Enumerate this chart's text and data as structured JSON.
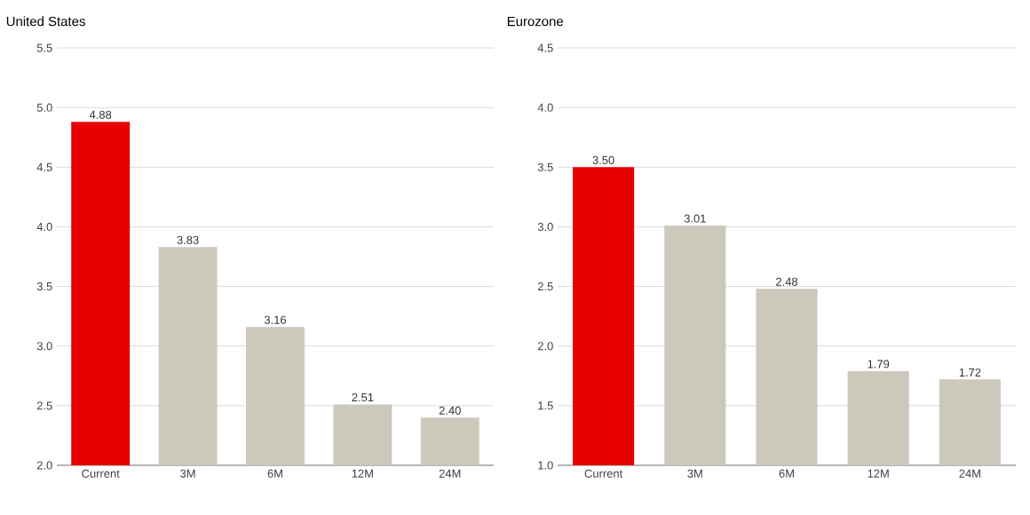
{
  "chart_data": [
    {
      "type": "bar",
      "title": "United States",
      "categories": [
        "Current",
        "3M",
        "6M",
        "12M",
        "24M"
      ],
      "values": [
        4.88,
        3.83,
        3.16,
        2.51,
        2.4
      ],
      "value_labels": [
        "4.88",
        "3.83",
        "3.16",
        "2.51",
        "2.40"
      ],
      "colors": [
        "#e60000",
        "#ccc9bc",
        "#ccc9bc",
        "#ccc9bc",
        "#ccc9bc"
      ],
      "ylim": [
        2.0,
        5.5
      ],
      "yticks": [
        {
          "value": 2,
          "label": "2.0"
        },
        {
          "value": 2.5,
          "label": "2.5"
        },
        {
          "value": 3,
          "label": "3.0"
        },
        {
          "value": 3.5,
          "label": "3.5"
        },
        {
          "value": 4,
          "label": "4.0"
        },
        {
          "value": 4.5,
          "label": "4.5"
        },
        {
          "value": 5,
          "label": "5.0"
        },
        {
          "value": 5.5,
          "label": "5.5"
        }
      ],
      "grid": "y"
    },
    {
      "type": "bar",
      "title": "Eurozone",
      "categories": [
        "Current",
        "3M",
        "6M",
        "12M",
        "24M"
      ],
      "values": [
        3.5,
        3.01,
        2.48,
        1.79,
        1.72
      ],
      "value_labels": [
        "3.50",
        "3.01",
        "2.48",
        "1.79",
        "1.72"
      ],
      "colors": [
        "#e60000",
        "#ccc9bc",
        "#ccc9bc",
        "#ccc9bc",
        "#ccc9bc"
      ],
      "ylim": [
        1.0,
        4.5
      ],
      "yticks": [
        {
          "value": 1,
          "label": "1.0"
        },
        {
          "value": 1.5,
          "label": "1.5"
        },
        {
          "value": 2,
          "label": "2.0"
        },
        {
          "value": 2.5,
          "label": "2.5"
        },
        {
          "value": 3,
          "label": "3.0"
        },
        {
          "value": 3.5,
          "label": "3.5"
        },
        {
          "value": 4,
          "label": "4.0"
        },
        {
          "value": 4.5,
          "label": "4.5"
        }
      ],
      "grid": "y"
    }
  ]
}
